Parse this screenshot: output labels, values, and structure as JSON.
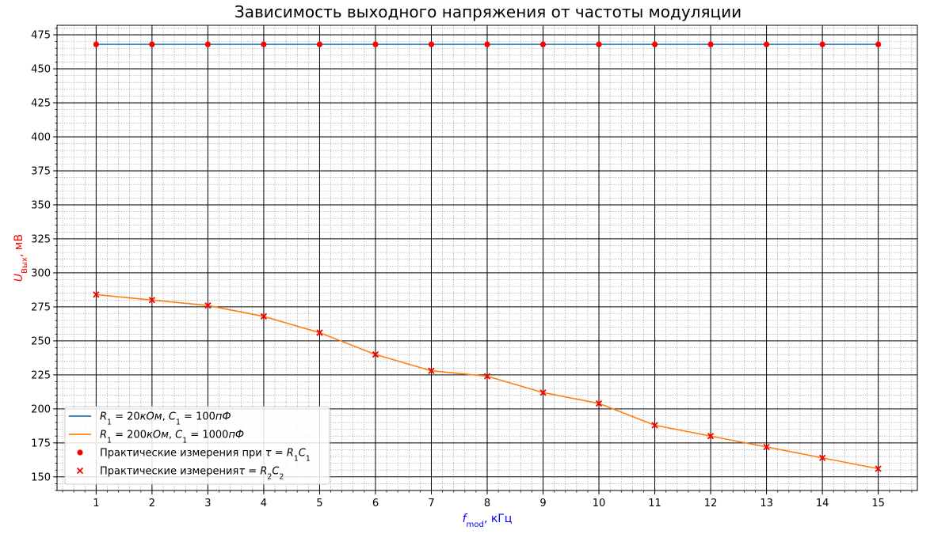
{
  "chart_data": {
    "type": "line",
    "title": "Зависимость выходного напряжения от частоты модуляции",
    "xlabel": {
      "symbol": "f",
      "subscript": "mod",
      "unit": ", кГц"
    },
    "ylabel": {
      "symbol": "U",
      "subscript": "Вых",
      "unit": ", мВ"
    },
    "xlabel_color": "#0000ff",
    "ylabel_color": "#ff0000",
    "xlim": [
      0.3,
      15.7
    ],
    "ylim": [
      140,
      482
    ],
    "x_ticks": [
      1,
      2,
      3,
      4,
      5,
      6,
      7,
      8,
      9,
      10,
      11,
      12,
      13,
      14,
      15
    ],
    "y_ticks": [
      150,
      175,
      200,
      225,
      250,
      275,
      300,
      325,
      350,
      375,
      400,
      425,
      450,
      475
    ],
    "x_minor_step": 0.2,
    "y_minor_step": 5,
    "grid": true,
    "legend_position": "lower-left",
    "x": [
      1,
      2,
      3,
      4,
      5,
      6,
      7,
      8,
      9,
      10,
      11,
      12,
      13,
      14,
      15
    ],
    "series": [
      {
        "name": "R₁ = 20кОм, C₁ = 100пФ",
        "legend_parts": [
          [
            "R",
            "it"
          ],
          [
            "1",
            "sub"
          ],
          [
            " = 20",
            ""
          ],
          [
            "кОм",
            "it"
          ],
          [
            ", ",
            ""
          ],
          [
            "C",
            "it"
          ],
          [
            "1",
            "sub"
          ],
          [
            " = 100",
            ""
          ],
          [
            "пФ",
            "it"
          ]
        ],
        "kind": "line",
        "color": "#1f77b4",
        "values": [
          468,
          468,
          468,
          468,
          468,
          468,
          468,
          468,
          468,
          468,
          468,
          468,
          468,
          468,
          468
        ]
      },
      {
        "name": "R₁ = 200кОм, C₁ = 1000пФ",
        "legend_parts": [
          [
            "R",
            "it"
          ],
          [
            "1",
            "sub"
          ],
          [
            " = 200",
            ""
          ],
          [
            "кОм",
            "it"
          ],
          [
            ", ",
            ""
          ],
          [
            "C",
            "it"
          ],
          [
            "1",
            "sub"
          ],
          [
            " = 1000",
            ""
          ],
          [
            "пФ",
            "it"
          ]
        ],
        "kind": "line",
        "color": "#ff7f0e",
        "values": [
          284,
          280,
          276,
          268,
          256,
          240,
          228,
          224,
          212,
          204,
          188,
          180,
          172,
          164,
          156
        ]
      },
      {
        "name": "Практические измерения при τ = R₁C₁",
        "legend_parts": [
          [
            "Практические измерения при ",
            ""
          ],
          [
            "τ",
            "it"
          ],
          [
            " = ",
            ""
          ],
          [
            "R",
            "it"
          ],
          [
            "1",
            "sub"
          ],
          [
            "C",
            "it"
          ],
          [
            "1",
            "sub"
          ]
        ],
        "kind": "scatter",
        "marker": "circle",
        "color": "#ff0000",
        "values": [
          468,
          468,
          468,
          468,
          468,
          468,
          468,
          468,
          468,
          468,
          468,
          468,
          468,
          468,
          468
        ]
      },
      {
        "name": "Практические измеренияτ = R₂C₂",
        "legend_parts": [
          [
            "Практические измерения",
            ""
          ],
          [
            "τ",
            "it"
          ],
          [
            " = ",
            ""
          ],
          [
            "R",
            "it"
          ],
          [
            "2",
            "sub"
          ],
          [
            "C",
            "it"
          ],
          [
            "2",
            "sub"
          ]
        ],
        "kind": "scatter",
        "marker": "x",
        "color": "#ff0000",
        "values": [
          284,
          280,
          276,
          268,
          256,
          240,
          228,
          224,
          212,
          204,
          188,
          180,
          172,
          164,
          156
        ]
      }
    ]
  }
}
